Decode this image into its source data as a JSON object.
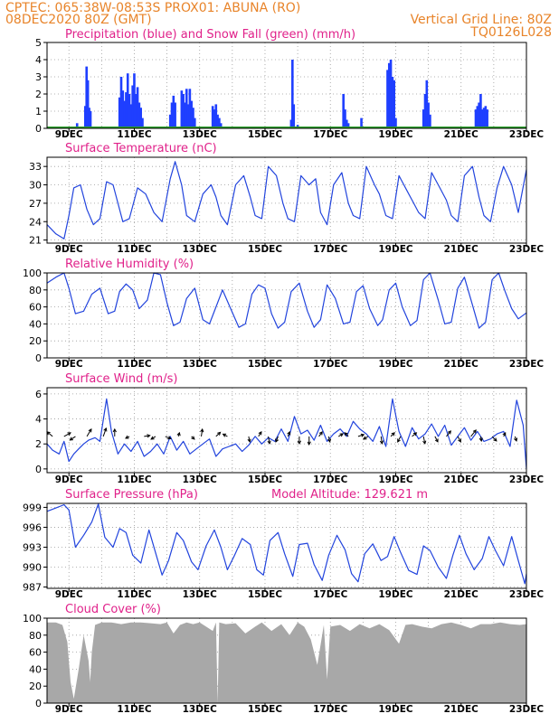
{
  "header": {
    "line1": "CPTEC:    065:38W-08:53S    PROX01: ABUNA (RO)",
    "line2_left": "08DEC2020 80Z (GMT)",
    "line2_right": "Vertical Grid Line: 80Z",
    "line3_right": "TQ0126L028"
  },
  "x_axis": {
    "tick_labels": [
      "9DEC",
      "11DEC",
      "13DEC",
      "15DEC",
      "17DEC",
      "19DEC",
      "21DEC",
      "23DEC"
    ]
  },
  "colors": {
    "header": "#e8842a",
    "panel_title": "#e0218a",
    "precip": "#1f3fff",
    "snow": "#2ca02c",
    "line": "#2244dd",
    "cloud": "#a8a8a8",
    "grid": "#9a9a9a"
  },
  "chart_data": [
    {
      "id": "precip",
      "type": "bar",
      "title": "Precipitation (blue) and Snow Fall (green) (mm/h)",
      "ylim": [
        0,
        5
      ],
      "yticks": [
        0,
        1,
        2,
        3,
        4,
        5
      ],
      "x_range_days": [
        8.33,
        23
      ],
      "series": [
        {
          "name": "Precipitation",
          "x": [
            9.25,
            9.5,
            9.54,
            9.58,
            9.62,
            9.66,
            10.55,
            10.6,
            10.65,
            10.7,
            10.75,
            10.8,
            10.85,
            10.9,
            10.95,
            11.0,
            11.05,
            11.1,
            11.15,
            11.2,
            11.25,
            12.1,
            12.15,
            12.2,
            12.25,
            12.45,
            12.5,
            12.55,
            12.6,
            12.65,
            12.7,
            12.75,
            12.8,
            12.85,
            13.4,
            13.45,
            13.5,
            13.55,
            13.6,
            13.65,
            15.8,
            15.84,
            15.88,
            16.0,
            17.4,
            17.45,
            17.5,
            17.55,
            17.95,
            18.75,
            18.8,
            18.85,
            18.9,
            18.95,
            19.0,
            19.85,
            19.9,
            19.95,
            20.0,
            20.05,
            21.45,
            21.5,
            21.55,
            21.6,
            21.65,
            21.7,
            21.75,
            21.8
          ],
          "values": [
            0.3,
            1.3,
            3.6,
            2.8,
            1.2,
            1.0,
            1.8,
            3.0,
            2.2,
            1.6,
            2.1,
            3.2,
            2.0,
            1.4,
            2.5,
            3.2,
            2.0,
            2.4,
            1.5,
            1.2,
            0.6,
            0.8,
            1.5,
            1.9,
            1.5,
            2.2,
            2.0,
            1.5,
            2.3,
            1.4,
            2.3,
            1.6,
            1.2,
            0.6,
            1.3,
            1.1,
            1.4,
            0.8,
            0.6,
            0.3,
            0.5,
            4.0,
            1.4,
            0.2,
            2.0,
            1.1,
            0.5,
            0.3,
            0.6,
            3.4,
            3.8,
            4.0,
            3.0,
            2.8,
            0.6,
            1.1,
            2.0,
            2.8,
            1.5,
            0.8,
            1.1,
            1.3,
            1.5,
            2.0,
            1.1,
            1.2,
            1.3,
            1.1
          ]
        },
        {
          "name": "Snow Fall",
          "x": [
            8.33,
            23
          ],
          "values": [
            0,
            0
          ]
        }
      ]
    },
    {
      "id": "temp",
      "type": "line",
      "title": "Surface Temperature (nC)",
      "ylim": [
        20.5,
        34.5
      ],
      "yticks": [
        21,
        24,
        27,
        30,
        33
      ],
      "x": [
        8.33,
        8.6,
        8.85,
        9.0,
        9.15,
        9.35,
        9.55,
        9.75,
        9.95,
        10.15,
        10.35,
        10.5,
        10.65,
        10.85,
        11.1,
        11.35,
        11.6,
        11.85,
        12.1,
        12.25,
        12.45,
        12.6,
        12.85,
        13.1,
        13.35,
        13.5,
        13.65,
        13.85,
        14.1,
        14.35,
        14.55,
        14.7,
        14.9,
        15.1,
        15.35,
        15.55,
        15.7,
        15.9,
        16.1,
        16.35,
        16.55,
        16.7,
        16.9,
        17.1,
        17.35,
        17.55,
        17.7,
        17.9,
        18.1,
        18.35,
        18.5,
        18.7,
        18.9,
        19.1,
        19.35,
        19.55,
        19.7,
        19.9,
        20.1,
        20.35,
        20.55,
        20.7,
        20.9,
        21.1,
        21.35,
        21.55,
        21.7,
        21.9,
        22.1,
        22.3,
        22.55,
        22.75,
        23.0
      ],
      "values": [
        23.5,
        22.0,
        21.2,
        25.0,
        29.5,
        30.0,
        26.0,
        23.5,
        24.5,
        30.5,
        30.0,
        27.0,
        24.0,
        24.5,
        29.5,
        28.5,
        25.5,
        24.0,
        31.0,
        33.8,
        30.0,
        25.0,
        24.0,
        28.5,
        30.0,
        28.0,
        25.0,
        23.5,
        30.0,
        31.5,
        28.0,
        25.0,
        24.5,
        33.0,
        31.5,
        27.0,
        24.5,
        24.0,
        31.5,
        30.0,
        31.0,
        25.5,
        23.5,
        30.0,
        32.0,
        27.0,
        25.0,
        24.5,
        33.0,
        30.0,
        28.5,
        25.0,
        24.5,
        31.5,
        29.0,
        27.0,
        25.5,
        24.5,
        32.0,
        29.5,
        27.5,
        25.0,
        24.0,
        31.5,
        33.0,
        28.0,
        25.0,
        24.0,
        29.5,
        33.0,
        30.0,
        25.5,
        32.5
      ]
    },
    {
      "id": "rh",
      "type": "line",
      "title": "Relative Humidity (%)",
      "ylim": [
        0,
        100
      ],
      "yticks": [
        0,
        20,
        40,
        60,
        80,
        100
      ],
      "x": [
        8.33,
        8.6,
        8.85,
        9.0,
        9.2,
        9.45,
        9.7,
        9.95,
        10.2,
        10.4,
        10.55,
        10.75,
        10.95,
        11.15,
        11.4,
        11.6,
        11.8,
        12.0,
        12.2,
        12.4,
        12.6,
        12.85,
        13.1,
        13.3,
        13.5,
        13.7,
        13.95,
        14.2,
        14.4,
        14.6,
        14.8,
        15.0,
        15.2,
        15.4,
        15.6,
        15.8,
        16.05,
        16.3,
        16.5,
        16.7,
        16.9,
        17.15,
        17.4,
        17.6,
        17.8,
        18.0,
        18.2,
        18.45,
        18.6,
        18.8,
        19.0,
        19.2,
        19.45,
        19.65,
        19.85,
        20.05,
        20.3,
        20.5,
        20.7,
        20.9,
        21.1,
        21.35,
        21.55,
        21.75,
        21.95,
        22.15,
        22.35,
        22.55,
        22.75,
        23.0
      ],
      "values": [
        88,
        95,
        100,
        82,
        52,
        55,
        75,
        82,
        52,
        55,
        78,
        87,
        80,
        58,
        68,
        100,
        98,
        65,
        38,
        42,
        70,
        82,
        45,
        40,
        60,
        80,
        58,
        36,
        40,
        75,
        86,
        82,
        52,
        35,
        42,
        78,
        88,
        55,
        36,
        45,
        86,
        70,
        40,
        42,
        78,
        85,
        58,
        38,
        45,
        80,
        88,
        60,
        38,
        44,
        92,
        100,
        68,
        40,
        42,
        82,
        95,
        62,
        35,
        42,
        92,
        100,
        78,
        58,
        46,
        53
      ]
    },
    {
      "id": "wind",
      "type": "line",
      "title": "Surface Wind (m/s)",
      "ylim": [
        -0.3,
        6.5
      ],
      "yticks": [
        0,
        2,
        4,
        6
      ],
      "x": [
        8.33,
        8.5,
        8.7,
        8.85,
        9.0,
        9.15,
        9.3,
        9.45,
        9.6,
        9.8,
        9.95,
        10.15,
        10.3,
        10.5,
        10.7,
        10.9,
        11.1,
        11.3,
        11.5,
        11.7,
        11.9,
        12.1,
        12.3,
        12.5,
        12.7,
        12.9,
        13.1,
        13.3,
        13.5,
        13.7,
        13.9,
        14.1,
        14.3,
        14.5,
        14.7,
        14.9,
        15.1,
        15.3,
        15.5,
        15.7,
        15.9,
        16.1,
        16.3,
        16.5,
        16.7,
        16.9,
        17.1,
        17.3,
        17.5,
        17.7,
        17.9,
        18.1,
        18.3,
        18.5,
        18.7,
        18.9,
        19.1,
        19.3,
        19.5,
        19.7,
        19.9,
        20.1,
        20.3,
        20.5,
        20.7,
        20.9,
        21.1,
        21.3,
        21.5,
        21.7,
        21.9,
        22.1,
        22.3,
        22.5,
        22.7,
        22.9,
        23.0
      ],
      "values": [
        2.0,
        1.5,
        1.2,
        2.2,
        0.6,
        1.2,
        1.6,
        2.0,
        2.3,
        2.5,
        2.2,
        5.6,
        3.0,
        1.2,
        2.0,
        1.4,
        2.2,
        1.0,
        1.4,
        2.0,
        1.2,
        2.6,
        1.5,
        2.2,
        1.2,
        1.6,
        2.0,
        2.4,
        1.0,
        1.6,
        1.8,
        2.0,
        1.4,
        1.9,
        2.6,
        2.0,
        2.5,
        2.2,
        3.2,
        2.2,
        4.2,
        2.8,
        3.1,
        2.3,
        3.5,
        2.2,
        2.8,
        3.2,
        2.6,
        3.8,
        3.2,
        2.8,
        2.2,
        3.4,
        1.8,
        5.6,
        3.0,
        1.8,
        3.3,
        2.4,
        2.8,
        3.6,
        2.6,
        3.5,
        1.9,
        2.6,
        3.3,
        2.3,
        3.0,
        2.2,
        2.4,
        2.8,
        3.0,
        1.8,
        5.5,
        3.5,
        0.0
      ]
    },
    {
      "id": "pressure",
      "type": "line",
      "title": "Surface Pressure (hPa)",
      "annotation": "Model Altitude: 129.621 m",
      "ylim": [
        986.8,
        999.6
      ],
      "yticks": [
        987,
        990,
        993,
        996,
        999
      ],
      "x": [
        8.33,
        8.6,
        8.85,
        9.0,
        9.2,
        9.45,
        9.7,
        9.9,
        10.1,
        10.35,
        10.55,
        10.75,
        10.95,
        11.2,
        11.45,
        11.65,
        11.85,
        12.05,
        12.3,
        12.5,
        12.75,
        12.95,
        13.2,
        13.45,
        13.65,
        13.85,
        14.05,
        14.3,
        14.55,
        14.75,
        14.95,
        15.15,
        15.4,
        15.6,
        15.85,
        16.05,
        16.3,
        16.5,
        16.75,
        16.95,
        17.2,
        17.45,
        17.65,
        17.85,
        18.05,
        18.3,
        18.55,
        18.75,
        18.95,
        19.15,
        19.4,
        19.65,
        19.85,
        20.05,
        20.3,
        20.55,
        20.75,
        20.95,
        21.15,
        21.4,
        21.65,
        21.85,
        22.05,
        22.3,
        22.55,
        22.75,
        22.95,
        23.0
      ],
      "values": [
        998.4,
        998.9,
        999.4,
        998.6,
        993.0,
        994.8,
        996.8,
        999.5,
        994.5,
        993.0,
        995.8,
        995.2,
        991.8,
        990.6,
        995.6,
        992.2,
        988.8,
        991.0,
        995.2,
        994.0,
        990.8,
        989.6,
        993.2,
        995.6,
        993.0,
        989.6,
        991.6,
        994.3,
        993.4,
        989.6,
        988.8,
        994.0,
        995.2,
        992.0,
        988.6,
        993.4,
        993.6,
        990.4,
        988.0,
        991.8,
        994.8,
        992.6,
        989.0,
        987.8,
        992.0,
        993.5,
        991.0,
        991.6,
        994.6,
        992.2,
        989.5,
        988.9,
        993.2,
        992.5,
        990.0,
        988.3,
        991.8,
        994.8,
        992.0,
        989.6,
        991.3,
        994.6,
        992.5,
        990.2,
        994.6,
        991.0,
        987.5,
        989.0
      ]
    },
    {
      "id": "cloud",
      "type": "area",
      "title": "Cloud Cover (%)",
      "ylim": [
        0,
        100
      ],
      "yticks": [
        0,
        20,
        40,
        60,
        80,
        100
      ],
      "x": [
        8.33,
        8.6,
        8.8,
        8.95,
        9.05,
        9.15,
        9.3,
        9.45,
        9.6,
        9.65,
        9.7,
        9.8,
        10.0,
        10.3,
        10.6,
        10.9,
        11.2,
        11.5,
        11.8,
        12.0,
        12.2,
        12.4,
        12.6,
        12.8,
        13.0,
        13.2,
        13.4,
        13.5,
        13.55,
        13.6,
        13.8,
        14.1,
        14.4,
        14.7,
        14.9,
        15.2,
        15.5,
        15.75,
        16.0,
        16.2,
        16.4,
        16.6,
        16.8,
        16.9,
        17.0,
        17.3,
        17.6,
        17.9,
        18.2,
        18.5,
        18.8,
        19.1,
        19.3,
        19.5,
        19.8,
        20.1,
        20.4,
        20.7,
        21.0,
        21.3,
        21.6,
        21.9,
        22.2,
        22.5,
        22.8,
        23.0
      ],
      "values": [
        95,
        95,
        92,
        72,
        25,
        5,
        40,
        80,
        50,
        25,
        60,
        92,
        95,
        95,
        93,
        95,
        95,
        94,
        93,
        95,
        82,
        92,
        95,
        93,
        95,
        90,
        85,
        95,
        0,
        95,
        93,
        94,
        82,
        90,
        95,
        85,
        93,
        80,
        95,
        90,
        75,
        45,
        92,
        28,
        90,
        92,
        85,
        93,
        88,
        93,
        86,
        70,
        92,
        93,
        90,
        88,
        93,
        95,
        92,
        88,
        93,
        93,
        95,
        93,
        92,
        93
      ]
    }
  ],
  "wind_vectors": {
    "x": [
      8.5,
      8.85,
      9.2,
      9.55,
      10.05,
      10.4,
      10.85,
      11.3,
      11.65,
      11.95,
      12.35,
      12.75,
      13.05,
      13.5,
      13.85,
      14.5,
      14.8,
      15.1,
      15.4,
      15.7,
      16.05,
      16.35,
      16.65,
      16.95,
      17.25,
      17.55,
      17.85,
      18.15,
      18.55,
      18.85,
      19.15,
      19.5,
      19.85,
      20.2,
      20.55,
      20.9,
      21.3,
      21.6,
      21.95,
      22.3,
      22.65
    ],
    "u": [
      -1.5,
      1.8,
      -1.5,
      1.2,
      0.8,
      0,
      -1,
      1.6,
      -1.2,
      1.5,
      0.3,
      0.8,
      0.3,
      1.2,
      -1.2,
      0.3,
      0.8,
      0.4,
      -0.6,
      0.5,
      0,
      0,
      0.9,
      0.3,
      1.2,
      -1.0,
      1.6,
      -1.2,
      0.3,
      1.0,
      -0.8,
      1.2,
      0.4,
      0.8,
      1.2,
      0.8,
      1.4,
      0.2,
      1.2,
      0.5,
      0.4
    ],
    "v": [
      1.0,
      0.8,
      -0.8,
      1.6,
      1.8,
      1.6,
      -0.4,
      0.2,
      -0.6,
      -0.5,
      0.8,
      -0.6,
      1.6,
      0.9,
      0.5,
      -1.2,
      1.0,
      -1.6,
      -1.2,
      1.0,
      -1.6,
      -1.8,
      1.0,
      -1.2,
      0.6,
      0.8,
      0.4,
      -0.6,
      -1.6,
      0.8,
      -1.2,
      0.8,
      -1.6,
      -1.2,
      1.2,
      -1.2,
      1.4,
      -1.0,
      -1.0,
      0.8,
      -1.0
    ]
  }
}
